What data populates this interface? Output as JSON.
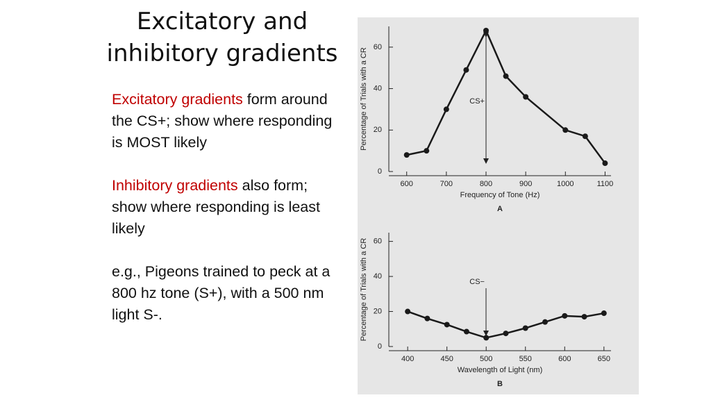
{
  "slide": {
    "title_lines": [
      "Excitatory and",
      "inhibitory gradients"
    ],
    "paragraphs": [
      {
        "highlight": "Excitatory gradients",
        "text": "form around the CS+; show where responding is MOST likely"
      },
      {
        "highlight": "Inhibitory gradients",
        "text": "also form; show where responding is least likely"
      },
      {
        "text": "e.g., Pigeons trained to peck at a 800 hz tone (S+), with a 500 nm light S-."
      }
    ]
  },
  "chart_data": [
    {
      "type": "line",
      "panel_label": "A",
      "x_label": "Frequency of Tone (Hz)",
      "y_label": "Percentage of Trials with a CR",
      "annotation": "CS+",
      "color": "#1a1a1a",
      "x": [
        600,
        650,
        700,
        750,
        800,
        850,
        900,
        1000,
        1050,
        1100
      ],
      "values": [
        8,
        10,
        30,
        49,
        68,
        46,
        36,
        20,
        17,
        4
      ],
      "xlim": [
        555,
        1115
      ],
      "xticks": [
        600,
        700,
        800,
        900,
        1000,
        1100
      ],
      "ylim": [
        0,
        70
      ],
      "yticks": [
        0,
        20,
        40,
        60
      ]
    },
    {
      "type": "line",
      "panel_label": "B",
      "x_label": "Wavelength of Light (nm)",
      "y_label": "Percentage of Trials with a CR",
      "annotation": "CS−",
      "color": "#1a1a1a",
      "x": [
        400,
        425,
        450,
        475,
        500,
        525,
        550,
        575,
        600,
        625,
        650
      ],
      "values": [
        20,
        16,
        12.5,
        8.5,
        5,
        7.5,
        10.5,
        14,
        17.5,
        17,
        19
      ],
      "xlim": [
        376,
        659
      ],
      "xticks": [
        400,
        450,
        500,
        550,
        600,
        650
      ],
      "ylim": [
        0,
        65
      ],
      "yticks": [
        0,
        20,
        40,
        60
      ]
    }
  ]
}
